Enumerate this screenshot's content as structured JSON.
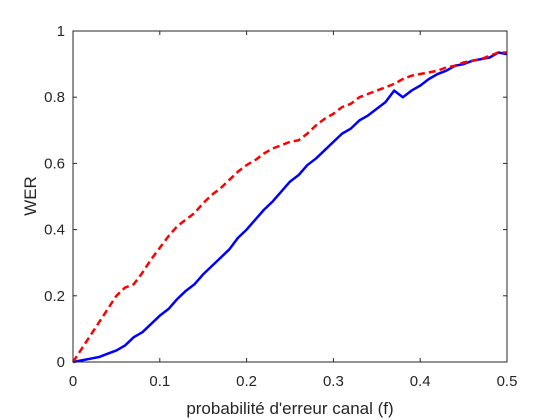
{
  "chart_data": {
    "type": "line",
    "title": "",
    "xlabel": "probabilité d'erreur canal (f)",
    "ylabel": "WER",
    "xlim": [
      0,
      0.5
    ],
    "ylim": [
      0,
      1
    ],
    "xticks": [
      0,
      0.1,
      0.2,
      0.3,
      0.4,
      0.5
    ],
    "yticks": [
      0,
      0.2,
      0.4,
      0.6,
      0.8,
      1
    ],
    "xtick_labels": [
      "0",
      "0.1",
      "0.2",
      "0.3",
      "0.4",
      "0.5"
    ],
    "ytick_labels": [
      "0",
      "0.2",
      "0.4",
      "0.6",
      "0.8",
      "1"
    ],
    "grid": false,
    "legend": "none",
    "series": [
      {
        "color": "#0000ff",
        "style": "solid",
        "x": [
          0,
          0.01,
          0.02,
          0.03,
          0.04,
          0.05,
          0.06,
          0.07,
          0.08,
          0.09,
          0.1,
          0.11,
          0.12,
          0.13,
          0.14,
          0.15,
          0.16,
          0.17,
          0.18,
          0.19,
          0.2,
          0.21,
          0.22,
          0.23,
          0.24,
          0.25,
          0.26,
          0.27,
          0.28,
          0.29,
          0.3,
          0.31,
          0.32,
          0.33,
          0.34,
          0.35,
          0.36,
          0.37,
          0.38,
          0.39,
          0.4,
          0.41,
          0.42,
          0.43,
          0.44,
          0.45,
          0.46,
          0.47,
          0.48,
          0.49,
          0.5
        ],
        "y": [
          0,
          0.005,
          0.01,
          0.015,
          0.025,
          0.035,
          0.05,
          0.075,
          0.09,
          0.115,
          0.14,
          0.16,
          0.19,
          0.215,
          0.235,
          0.265,
          0.29,
          0.315,
          0.34,
          0.375,
          0.4,
          0.43,
          0.46,
          0.485,
          0.515,
          0.545,
          0.565,
          0.595,
          0.615,
          0.64,
          0.665,
          0.69,
          0.705,
          0.73,
          0.745,
          0.765,
          0.785,
          0.82,
          0.8,
          0.82,
          0.835,
          0.855,
          0.87,
          0.88,
          0.895,
          0.9,
          0.91,
          0.915,
          0.92,
          0.935,
          0.93
        ]
      },
      {
        "color": "#ff0000",
        "style": "dashed",
        "x": [
          0,
          0.01,
          0.02,
          0.03,
          0.04,
          0.05,
          0.06,
          0.07,
          0.08,
          0.09,
          0.1,
          0.11,
          0.12,
          0.13,
          0.14,
          0.15,
          0.16,
          0.17,
          0.18,
          0.19,
          0.2,
          0.21,
          0.22,
          0.23,
          0.24,
          0.25,
          0.26,
          0.27,
          0.28,
          0.29,
          0.3,
          0.31,
          0.32,
          0.33,
          0.34,
          0.35,
          0.36,
          0.37,
          0.38,
          0.39,
          0.4,
          0.41,
          0.42,
          0.43,
          0.44,
          0.45,
          0.46,
          0.47,
          0.48,
          0.49,
          0.5
        ],
        "y": [
          0,
          0.04,
          0.08,
          0.12,
          0.16,
          0.2,
          0.225,
          0.235,
          0.27,
          0.31,
          0.345,
          0.38,
          0.41,
          0.43,
          0.45,
          0.48,
          0.505,
          0.525,
          0.55,
          0.575,
          0.595,
          0.61,
          0.63,
          0.645,
          0.655,
          0.665,
          0.67,
          0.69,
          0.715,
          0.735,
          0.75,
          0.77,
          0.78,
          0.8,
          0.81,
          0.82,
          0.83,
          0.84,
          0.855,
          0.865,
          0.87,
          0.875,
          0.88,
          0.89,
          0.895,
          0.905,
          0.91,
          0.915,
          0.925,
          0.935,
          0.935
        ]
      }
    ]
  }
}
